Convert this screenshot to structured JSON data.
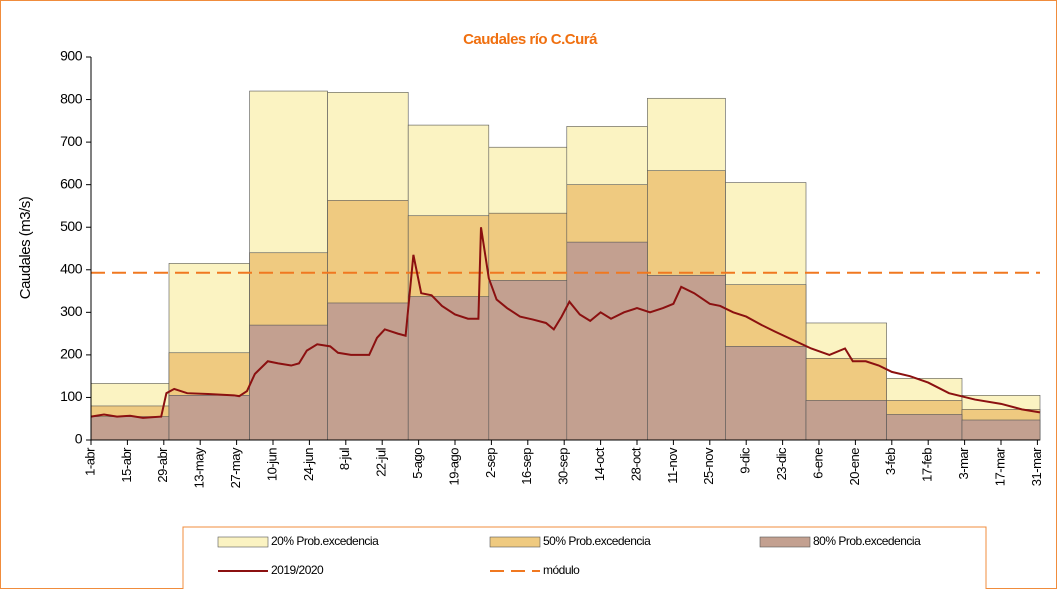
{
  "chart_data": {
    "type": "step-area",
    "title": "Caudales río C.Curá",
    "y_label": "Caudales (m3/s)",
    "xlim": [
      0,
      365
    ],
    "ylim": [
      0,
      900
    ],
    "yticks": [
      0,
      100,
      200,
      300,
      400,
      500,
      600,
      700,
      800,
      900
    ],
    "xticks": [
      {
        "value": 0,
        "label": "1-abr"
      },
      {
        "value": 14,
        "label": "15-abr"
      },
      {
        "value": 28,
        "label": "29-abr"
      },
      {
        "value": 42,
        "label": "13-may"
      },
      {
        "value": 56,
        "label": "27-may"
      },
      {
        "value": 70,
        "label": "10-jun"
      },
      {
        "value": 84,
        "label": "24-jun"
      },
      {
        "value": 98,
        "label": "8-jul"
      },
      {
        "value": 112,
        "label": "22-jul"
      },
      {
        "value": 126,
        "label": "5-ago"
      },
      {
        "value": 140,
        "label": "19-ago"
      },
      {
        "value": 154,
        "label": "2-sep"
      },
      {
        "value": 168,
        "label": "16-sep"
      },
      {
        "value": 182,
        "label": "30-sep"
      },
      {
        "value": 196,
        "label": "14-oct"
      },
      {
        "value": 210,
        "label": "28-oct"
      },
      {
        "value": 224,
        "label": "11-nov"
      },
      {
        "value": 238,
        "label": "25-nov"
      },
      {
        "value": 252,
        "label": "9-dic"
      },
      {
        "value": 266,
        "label": "23-dic"
      },
      {
        "value": 280,
        "label": "6-ene"
      },
      {
        "value": 294,
        "label": "20-ene"
      },
      {
        "value": 308,
        "label": "3-feb"
      },
      {
        "value": 322,
        "label": "17-feb"
      },
      {
        "value": 336,
        "label": "3-mar"
      },
      {
        "value": 350,
        "label": "17-mar"
      },
      {
        "value": 364,
        "label": "31-mar"
      }
    ],
    "bins": [
      0,
      30,
      61,
      91,
      122,
      153,
      183,
      214,
      244,
      275,
      306,
      335,
      365
    ],
    "areas": [
      {
        "name": "20% Prob.excedencia",
        "color": "#fbf3c2",
        "values": [
          133,
          415,
          820,
          817,
          740,
          688,
          737,
          803,
          605,
          275,
          145,
          105
        ]
      },
      {
        "name": "50% Prob.excedencia",
        "color": "#efca80",
        "values": [
          80,
          205,
          440,
          563,
          527,
          533,
          600,
          633,
          365,
          192,
          93,
          72
        ]
      },
      {
        "name": "80% Prob.excedencia",
        "color": "#c3a090",
        "values": [
          55,
          105,
          270,
          322,
          337,
          375,
          465,
          387,
          220,
          93,
          60,
          47
        ]
      }
    ],
    "line": {
      "name": "2019/2020",
      "color": "#8b1010",
      "x": [
        0,
        5,
        10,
        15,
        20,
        27,
        29,
        32,
        37,
        45,
        55,
        57,
        60,
        63,
        68,
        72,
        77,
        80,
        83,
        87,
        92,
        95,
        100,
        107,
        110,
        113,
        118,
        121,
        124,
        127,
        131,
        135,
        140,
        145,
        149,
        150,
        153,
        156,
        160,
        165,
        170,
        175,
        178,
        181,
        184,
        188,
        192,
        196,
        200,
        205,
        210,
        215,
        220,
        224,
        227,
        232,
        238,
        242,
        247,
        252,
        258,
        263,
        270,
        277,
        284,
        290,
        293,
        298,
        303,
        308,
        315,
        322,
        330,
        340,
        350,
        358,
        365
      ],
      "values": [
        55,
        60,
        55,
        57,
        52,
        55,
        110,
        120,
        110,
        108,
        105,
        103,
        115,
        155,
        185,
        180,
        175,
        180,
        210,
        225,
        220,
        205,
        200,
        200,
        240,
        260,
        250,
        245,
        435,
        345,
        340,
        315,
        295,
        285,
        285,
        500,
        380,
        330,
        310,
        290,
        283,
        275,
        260,
        290,
        325,
        295,
        280,
        300,
        285,
        300,
        310,
        300,
        310,
        320,
        360,
        345,
        320,
        315,
        300,
        290,
        270,
        255,
        235,
        215,
        200,
        215,
        185,
        185,
        175,
        160,
        150,
        135,
        110,
        95,
        85,
        72,
        65
      ]
    },
    "modulo": {
      "name": "módulo",
      "color": "#f07820",
      "value": 393
    }
  }
}
